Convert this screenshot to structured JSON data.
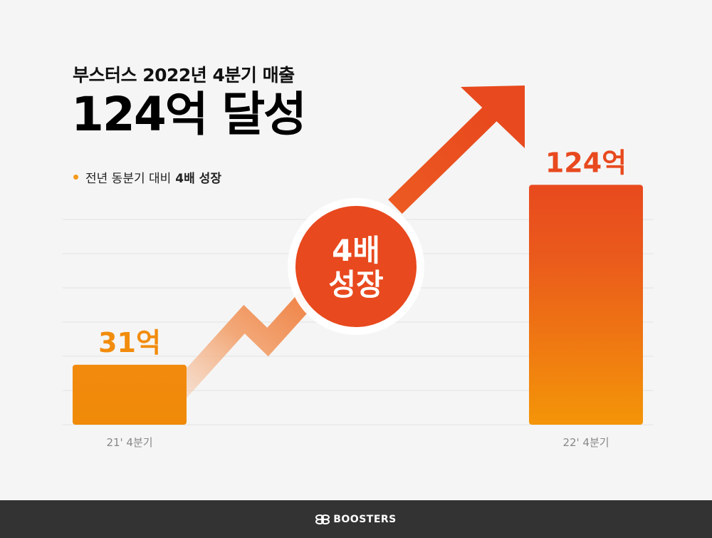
{
  "header": {
    "subtitle": "부스터스 2022년 4분기 매출",
    "title": "124억 달성",
    "bullet_text": "전년 동분기 대비",
    "bullet_bold": "4배 성장"
  },
  "badge": {
    "line1": "4배",
    "line2": "성장"
  },
  "colors": {
    "orange": "#f28c0c",
    "red_orange": "#e8491e",
    "light_orange": "#f59a1c"
  },
  "chart_data": {
    "type": "bar",
    "categories": [
      "21' 4분기",
      "22' 4분기"
    ],
    "values": [
      31,
      124
    ],
    "data_labels": [
      "31억",
      "124억"
    ],
    "ylim": [
      0,
      140
    ],
    "grid": true
  },
  "footer": {
    "brand": "BOOSTERS"
  }
}
